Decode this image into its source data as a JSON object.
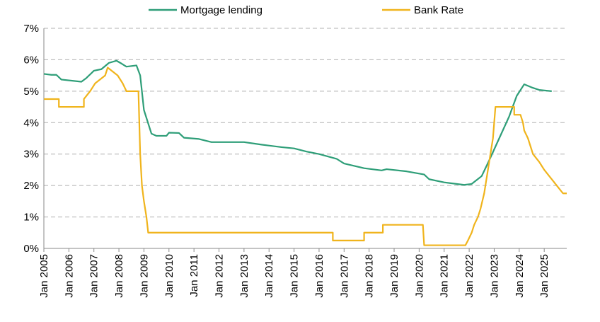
{
  "chart_data": {
    "type": "line",
    "series": [
      {
        "name": "Mortgage lending",
        "color": "#2e9e78",
        "x": [
          2005.0,
          2005.3,
          2005.5,
          2005.7,
          2006.5,
          2006.7,
          2007.0,
          2007.3,
          2007.6,
          2007.9,
          2008.1,
          2008.3,
          2008.7,
          2008.85,
          2009.0,
          2009.3,
          2009.5,
          2009.9,
          2010.0,
          2010.4,
          2010.6,
          2011.2,
          2011.7,
          2012.5,
          2013.0,
          2013.7,
          2014.5,
          2015.0,
          2015.5,
          2016.0,
          2016.7,
          2017.0,
          2017.8,
          2018.5,
          2018.7,
          2019.5,
          2020.2,
          2020.4,
          2021.0,
          2021.8,
          2022.1,
          2022.5,
          2022.8,
          2023.2,
          2023.6,
          2023.9,
          2024.2,
          2024.5,
          2024.8,
          2025.3
        ],
        "values": [
          5.55,
          5.52,
          5.52,
          5.37,
          5.3,
          5.42,
          5.65,
          5.7,
          5.9,
          5.97,
          5.88,
          5.78,
          5.82,
          5.5,
          4.4,
          3.65,
          3.58,
          3.58,
          3.68,
          3.67,
          3.52,
          3.48,
          3.38,
          3.38,
          3.38,
          3.3,
          3.22,
          3.18,
          3.08,
          3.0,
          2.85,
          2.7,
          2.55,
          2.48,
          2.52,
          2.45,
          2.35,
          2.2,
          2.1,
          2.02,
          2.05,
          2.3,
          2.8,
          3.5,
          4.2,
          4.85,
          5.22,
          5.12,
          5.04,
          5.0
        ]
      },
      {
        "name": "Bank Rate",
        "color": "#f0b41c",
        "x": [
          2005.0,
          2005.6,
          2005.6,
          2006.6,
          2006.6,
          2006.85,
          2007.05,
          2007.45,
          2007.55,
          2007.95,
          2008.15,
          2008.3,
          2008.78,
          2008.85,
          2008.92,
          2009.0,
          2009.1,
          2009.17,
          2016.55,
          2016.55,
          2017.8,
          2017.8,
          2018.55,
          2018.55,
          2020.15,
          2020.2,
          2021.85,
          2021.95,
          2022.1,
          2022.2,
          2022.35,
          2022.45,
          2022.6,
          2022.7,
          2022.85,
          2022.95,
          2023.05,
          2023.8,
          2023.8,
          2024.05,
          2024.15,
          2024.2,
          2024.35,
          2024.45,
          2024.55,
          2024.8,
          2025.0,
          2025.25,
          2025.5,
          2025.75,
          2025.9
        ],
        "values": [
          4.75,
          4.75,
          4.5,
          4.5,
          4.75,
          5.0,
          5.25,
          5.5,
          5.75,
          5.5,
          5.25,
          5.0,
          5.0,
          3.0,
          2.0,
          1.5,
          1.0,
          0.5,
          0.5,
          0.25,
          0.25,
          0.5,
          0.5,
          0.75,
          0.75,
          0.1,
          0.1,
          0.25,
          0.5,
          0.75,
          1.0,
          1.25,
          1.75,
          2.25,
          3.0,
          3.5,
          4.5,
          4.5,
          4.25,
          4.25,
          4.0,
          3.75,
          3.5,
          3.25,
          3.0,
          2.75,
          2.5,
          2.25,
          2.0,
          1.75,
          1.75
        ]
      }
    ],
    "xlim": [
      2005,
      2025.9
    ],
    "xticks": [
      {
        "value": 2005,
        "label": "Jan 2005"
      },
      {
        "value": 2006,
        "label": "Jan 2006"
      },
      {
        "value": 2007,
        "label": "Jan 2007"
      },
      {
        "value": 2008,
        "label": "Jan 2008"
      },
      {
        "value": 2009,
        "label": "Jan 2009"
      },
      {
        "value": 2010,
        "label": "Jan 2010"
      },
      {
        "value": 2011,
        "label": "Jan 2011"
      },
      {
        "value": 2012,
        "label": "Jan 2012"
      },
      {
        "value": 2013,
        "label": "Jan 2013"
      },
      {
        "value": 2014,
        "label": "Jan 2014"
      },
      {
        "value": 2015,
        "label": "Jan 2015"
      },
      {
        "value": 2016,
        "label": "Jan 2016"
      },
      {
        "value": 2017,
        "label": "Jan 2017"
      },
      {
        "value": 2018,
        "label": "Jan 2018"
      },
      {
        "value": 2019,
        "label": "Jan 2019"
      },
      {
        "value": 2020,
        "label": "Jan 2020"
      },
      {
        "value": 2021,
        "label": "Jan 2021"
      },
      {
        "value": 2022,
        "label": "Jan 2022"
      },
      {
        "value": 2023,
        "label": "Jan 2023"
      },
      {
        "value": 2024,
        "label": "Jan 2024"
      },
      {
        "value": 2025,
        "label": "Jan 2025"
      }
    ],
    "ylim": [
      0,
      7
    ],
    "yticks": [
      {
        "value": 0,
        "label": "0%"
      },
      {
        "value": 1,
        "label": "1%"
      },
      {
        "value": 2,
        "label": "2%"
      },
      {
        "value": 3,
        "label": "3%"
      },
      {
        "value": 4,
        "label": "4%"
      },
      {
        "value": 5,
        "label": "5%"
      },
      {
        "value": 6,
        "label": "6%"
      },
      {
        "value": 7,
        "label": "7%"
      }
    ],
    "grid": true
  }
}
